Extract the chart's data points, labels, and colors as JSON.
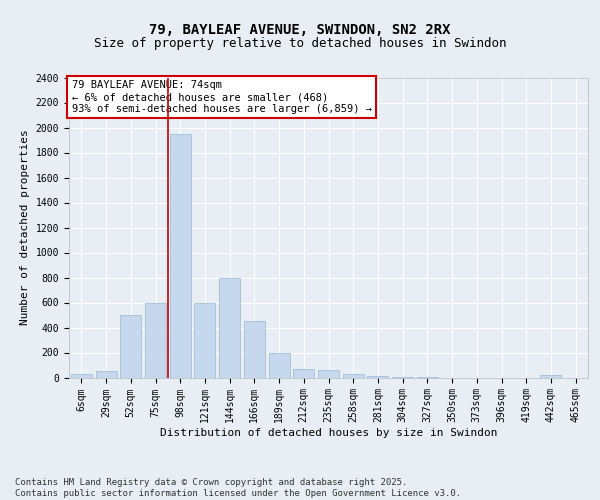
{
  "title1": "79, BAYLEAF AVENUE, SWINDON, SN2 2RX",
  "title2": "Size of property relative to detached houses in Swindon",
  "xlabel": "Distribution of detached houses by size in Swindon",
  "ylabel": "Number of detached properties",
  "categories": [
    "6sqm",
    "29sqm",
    "52sqm",
    "75sqm",
    "98sqm",
    "121sqm",
    "144sqm",
    "166sqm",
    "189sqm",
    "212sqm",
    "235sqm",
    "258sqm",
    "281sqm",
    "304sqm",
    "327sqm",
    "350sqm",
    "373sqm",
    "396sqm",
    "419sqm",
    "442sqm",
    "465sqm"
  ],
  "values": [
    30,
    50,
    500,
    600,
    1950,
    600,
    800,
    450,
    200,
    70,
    60,
    30,
    15,
    8,
    2,
    0,
    0,
    0,
    0,
    20,
    0
  ],
  "bar_color": "#c5d8ed",
  "bar_edge_color": "#9ab8d0",
  "vline_x": 3.5,
  "vline_color": "#cc0000",
  "annotation_text": "79 BAYLEAF AVENUE: 74sqm\n← 6% of detached houses are smaller (468)\n93% of semi-detached houses are larger (6,859) →",
  "annotation_box_color": "white",
  "annotation_box_edge": "#cc0000",
  "ylim": [
    0,
    2400
  ],
  "yticks": [
    0,
    200,
    400,
    600,
    800,
    1000,
    1200,
    1400,
    1600,
    1800,
    2000,
    2200,
    2400
  ],
  "bg_color": "#e8eef4",
  "plot_bg_color": "#e8eef4",
  "grid_color": "white",
  "footer": "Contains HM Land Registry data © Crown copyright and database right 2025.\nContains public sector information licensed under the Open Government Licence v3.0.",
  "title1_fontsize": 10,
  "title2_fontsize": 9,
  "xlabel_fontsize": 8,
  "ylabel_fontsize": 8,
  "tick_fontsize": 7,
  "annotation_fontsize": 7.5,
  "footer_fontsize": 6.5
}
